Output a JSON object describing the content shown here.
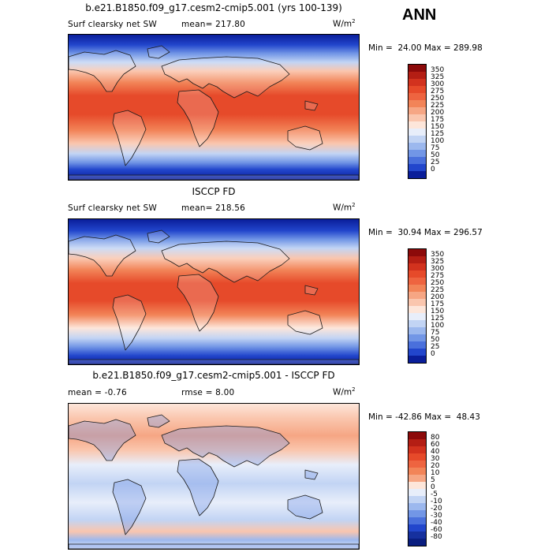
{
  "season": "ANN",
  "panels": [
    {
      "title": "b.e21.B1850.f09_g17.cesm2-cmip5.001 (yrs 100-139)",
      "left_label": "Surf clearsky net SW",
      "mean_label": "mean= 217.80",
      "units_base": "W/m",
      "units_sup": "2",
      "minmax": "Min =  24.00 Max = 289.98",
      "levels": [
        "350",
        "325",
        "300",
        "275",
        "250",
        "225",
        "200",
        "175",
        "150",
        "125",
        "100",
        "75",
        "50",
        "25",
        "0"
      ],
      "colors": [
        "#8c0a0a",
        "#b41e14",
        "#d2321e",
        "#e64a2a",
        "#ee6440",
        "#f28458",
        "#f6a684",
        "#fac6ae",
        "#fde6da",
        "#e8eefa",
        "#c2d4f4",
        "#9cb8ee",
        "#7296e6",
        "#4a70dc",
        "#2246cc",
        "#0a1e9a"
      ]
    },
    {
      "title": "ISCCP FD",
      "left_label": "Surf clearsky net SW",
      "mean_label": "mean= 218.56",
      "units_base": "W/m",
      "units_sup": "2",
      "minmax": "Min =  30.94 Max = 296.57",
      "levels": [
        "350",
        "325",
        "300",
        "275",
        "250",
        "225",
        "200",
        "175",
        "150",
        "125",
        "100",
        "75",
        "50",
        "25",
        "0"
      ],
      "colors": [
        "#8c0a0a",
        "#b41e14",
        "#d2321e",
        "#e64a2a",
        "#ee6440",
        "#f28458",
        "#f6a684",
        "#fac6ae",
        "#fde6da",
        "#e8eefa",
        "#c2d4f4",
        "#9cb8ee",
        "#7296e6",
        "#4a70dc",
        "#2246cc",
        "#0a1e9a"
      ]
    },
    {
      "title": "b.e21.B1850.f09_g17.cesm2-cmip5.001 - ISCCP FD",
      "left_label": "mean =  -0.76",
      "mean_label": "rmse =   8.00",
      "units_base": "W/m",
      "units_sup": "2",
      "minmax": "Min = -42.86 Max =  48.43",
      "levels": [
        "80",
        "60",
        "40",
        "30",
        "20",
        "10",
        "5",
        "0",
        "-5",
        "-10",
        "-20",
        "-30",
        "-40",
        "-60",
        "-80"
      ],
      "colors": [
        "#8c0a0a",
        "#b41e14",
        "#d2321e",
        "#e64a2a",
        "#ee6440",
        "#f28458",
        "#f6a684",
        "#fde6da",
        "#e8eefa",
        "#c2d4f4",
        "#9cb8ee",
        "#7296e6",
        "#4a70dc",
        "#2246cc",
        "#16309e",
        "#0a1e80"
      ]
    }
  ]
}
